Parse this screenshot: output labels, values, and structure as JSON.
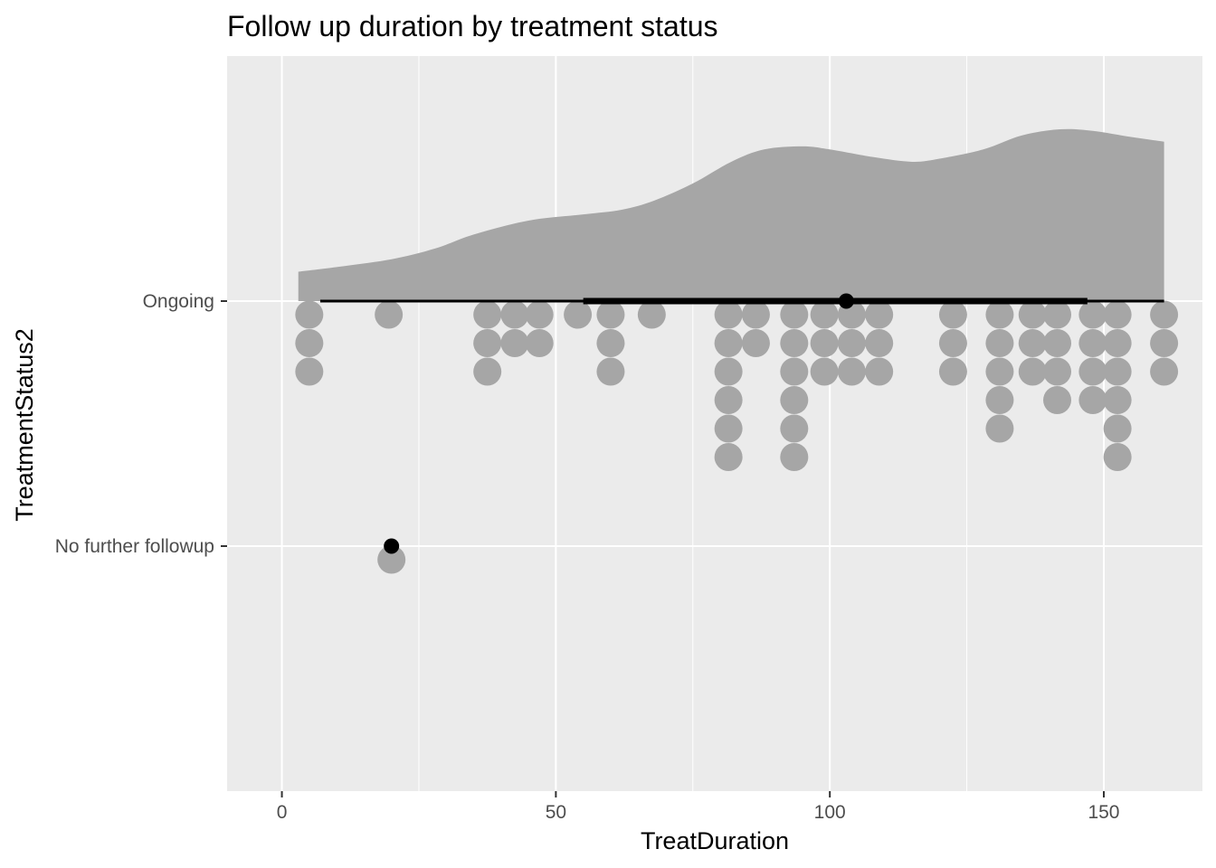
{
  "chart_data": {
    "type": "raincloud",
    "title": "Follow up duration by treatment status",
    "xlabel": "TreatDuration",
    "ylabel": "TreatmentStatus2",
    "xlim": [
      -10,
      168
    ],
    "x_ticks": [
      0,
      50,
      100,
      150
    ],
    "x_tick_labels": [
      "0",
      "50",
      "100",
      "150"
    ],
    "categories": [
      "Ongoing",
      "No further followup"
    ],
    "grid": true,
    "colors": {
      "panel": "#ebebeb",
      "grid": "#ffffff",
      "density": "#a6a6a6",
      "dots": "#a6a6a6",
      "interval": "#000000",
      "point": "#000000",
      "axis_text": "#4d4d4d",
      "axis_ticks": "#333333"
    },
    "density": {
      "category": "Ongoing",
      "x": [
        3,
        10,
        20,
        28,
        35,
        45,
        55,
        62,
        68,
        75,
        82,
        88,
        95,
        100,
        108,
        115,
        120,
        128,
        135,
        142,
        148,
        155,
        161
      ],
      "height": [
        0.19,
        0.22,
        0.27,
        0.34,
        0.43,
        0.52,
        0.56,
        0.59,
        0.65,
        0.76,
        0.9,
        0.98,
        1.0,
        0.98,
        0.93,
        0.9,
        0.92,
        0.98,
        1.07,
        1.11,
        1.1,
        1.06,
        1.03
      ]
    },
    "dot_stacks": [
      {
        "category": "Ongoing",
        "x": 5,
        "count": 3
      },
      {
        "category": "Ongoing",
        "x": 19.5,
        "count": 1
      },
      {
        "category": "Ongoing",
        "x": 37.5,
        "count": 3
      },
      {
        "category": "Ongoing",
        "x": 42.5,
        "count": 2
      },
      {
        "category": "Ongoing",
        "x": 47,
        "count": 2
      },
      {
        "category": "Ongoing",
        "x": 54,
        "count": 1
      },
      {
        "category": "Ongoing",
        "x": 60,
        "count": 3
      },
      {
        "category": "Ongoing",
        "x": 67.5,
        "count": 1
      },
      {
        "category": "Ongoing",
        "x": 81.5,
        "count": 6
      },
      {
        "category": "Ongoing",
        "x": 86.5,
        "count": 2
      },
      {
        "category": "Ongoing",
        "x": 93.5,
        "count": 6
      },
      {
        "category": "Ongoing",
        "x": 99,
        "count": 3
      },
      {
        "category": "Ongoing",
        "x": 104,
        "count": 3
      },
      {
        "category": "Ongoing",
        "x": 109,
        "count": 3
      },
      {
        "category": "Ongoing",
        "x": 122.5,
        "count": 3
      },
      {
        "category": "Ongoing",
        "x": 131,
        "count": 5
      },
      {
        "category": "Ongoing",
        "x": 137,
        "count": 3
      },
      {
        "category": "Ongoing",
        "x": 141.5,
        "count": 4
      },
      {
        "category": "Ongoing",
        "x": 148,
        "count": 4
      },
      {
        "category": "Ongoing",
        "x": 152.5,
        "count": 6
      },
      {
        "category": "Ongoing",
        "x": 161,
        "count": 3
      },
      {
        "category": "No further followup",
        "x": 20,
        "count": 1
      }
    ],
    "intervals": [
      {
        "category": "Ongoing",
        "thin": [
          7,
          161
        ],
        "thick": [
          55,
          147
        ],
        "point": 103
      },
      {
        "category": "No further followup",
        "thin": [
          20,
          20
        ],
        "thick": [
          20,
          20
        ],
        "point": 20
      }
    ]
  }
}
